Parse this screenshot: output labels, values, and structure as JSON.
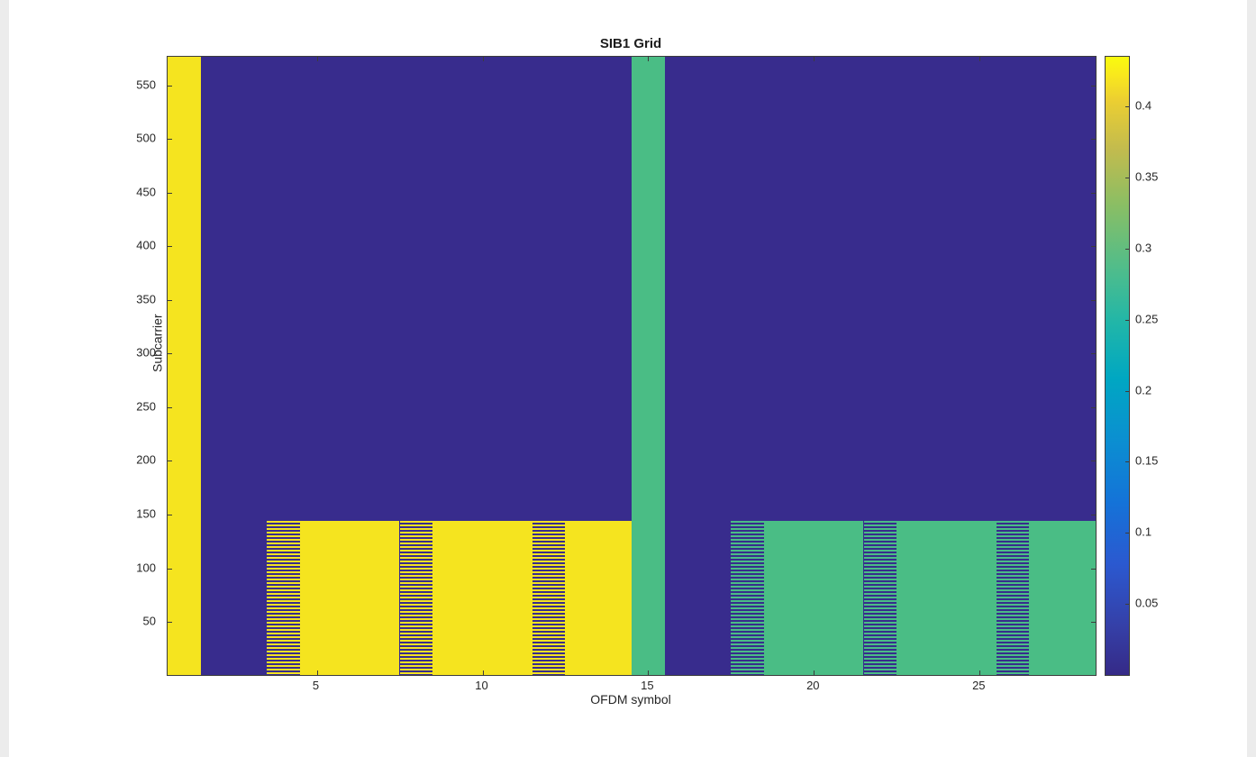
{
  "figure": {
    "title": "SIB1 Grid"
  },
  "axes": {
    "xlabel": "OFDM symbol",
    "ylabel": "Subcarrier",
    "x_ticks": [
      5,
      10,
      15,
      20,
      25
    ],
    "y_ticks": [
      50,
      100,
      150,
      200,
      250,
      300,
      350,
      400,
      450,
      500,
      550
    ]
  },
  "colorbar": {
    "ticks": [
      0.05,
      0.1,
      0.15,
      0.2,
      0.25,
      0.3,
      0.35,
      0.4
    ],
    "limits": [
      0,
      0.435
    ]
  },
  "chart_data": {
    "type": "heatmap",
    "title": "SIB1 Grid",
    "xlabel": "OFDM symbol",
    "ylabel": "Subcarrier",
    "x_range": [
      1,
      28
    ],
    "y_range": [
      1,
      576
    ],
    "x_ticks": [
      5,
      10,
      15,
      20,
      25
    ],
    "y_ticks": [
      50,
      100,
      150,
      200,
      250,
      300,
      350,
      400,
      450,
      500,
      550
    ],
    "colorbar_ticks": [
      0.05,
      0.1,
      0.15,
      0.2,
      0.25,
      0.3,
      0.35,
      0.4
    ],
    "color_limits": [
      0,
      0.435
    ],
    "colormap": "parula",
    "background_value": 0.01,
    "value_color_map": [
      {
        "value": 0.01,
        "color": "#382c8d"
      },
      {
        "value": 0.26,
        "color": "#4abd85"
      },
      {
        "value": 0.43,
        "color": "#f5e41f"
      }
    ],
    "regions": [
      {
        "name": "region-sym1-full-column",
        "symbols": [
          1,
          1
        ],
        "subcarriers": [
          1,
          576
        ],
        "value": 0.43,
        "pattern": "solid"
      },
      {
        "name": "region-sym4-striped",
        "symbols": [
          4,
          4
        ],
        "subcarriers": [
          1,
          144
        ],
        "value": 0.43,
        "pattern": "striped"
      },
      {
        "name": "region-sym5-7-solid",
        "symbols": [
          5,
          7
        ],
        "subcarriers": [
          1,
          144
        ],
        "value": 0.43,
        "pattern": "solid"
      },
      {
        "name": "region-sym8-striped",
        "symbols": [
          8,
          8
        ],
        "subcarriers": [
          1,
          144
        ],
        "value": 0.43,
        "pattern": "striped"
      },
      {
        "name": "region-sym9-11-solid",
        "symbols": [
          9,
          11
        ],
        "subcarriers": [
          1,
          144
        ],
        "value": 0.43,
        "pattern": "solid"
      },
      {
        "name": "region-sym12-striped",
        "symbols": [
          12,
          12
        ],
        "subcarriers": [
          1,
          144
        ],
        "value": 0.43,
        "pattern": "striped"
      },
      {
        "name": "region-sym13-14-solid",
        "symbols": [
          13,
          14
        ],
        "subcarriers": [
          1,
          144
        ],
        "value": 0.43,
        "pattern": "solid"
      },
      {
        "name": "region-sym15-full-column",
        "symbols": [
          15,
          15
        ],
        "subcarriers": [
          1,
          576
        ],
        "value": 0.26,
        "pattern": "solid"
      },
      {
        "name": "region-sym18-striped",
        "symbols": [
          18,
          18
        ],
        "subcarriers": [
          1,
          144
        ],
        "value": 0.26,
        "pattern": "striped"
      },
      {
        "name": "region-sym19-21-solid",
        "symbols": [
          19,
          21
        ],
        "subcarriers": [
          1,
          144
        ],
        "value": 0.26,
        "pattern": "solid"
      },
      {
        "name": "region-sym22-striped",
        "symbols": [
          22,
          22
        ],
        "subcarriers": [
          1,
          144
        ],
        "value": 0.26,
        "pattern": "striped"
      },
      {
        "name": "region-sym23-25-solid",
        "symbols": [
          23,
          25
        ],
        "subcarriers": [
          1,
          144
        ],
        "value": 0.26,
        "pattern": "solid"
      },
      {
        "name": "region-sym26-striped",
        "symbols": [
          26,
          26
        ],
        "subcarriers": [
          1,
          144
        ],
        "value": 0.26,
        "pattern": "striped"
      },
      {
        "name": "region-sym27-28-solid",
        "symbols": [
          27,
          28
        ],
        "subcarriers": [
          1,
          144
        ],
        "value": 0.26,
        "pattern": "solid"
      }
    ]
  }
}
